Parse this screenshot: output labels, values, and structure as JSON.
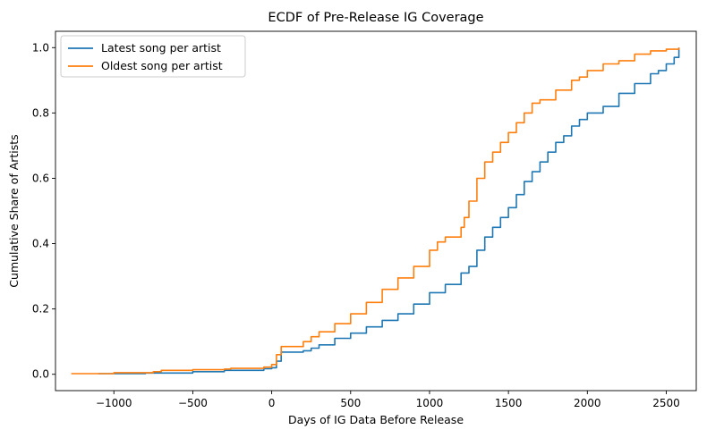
{
  "chart_data": {
    "type": "line",
    "title": "ECDF of Pre-Release IG Coverage",
    "xlabel": "Days of IG Data Before Release",
    "ylabel": "Cumulative Share of Artists",
    "xlim": [
      -1370,
      2690
    ],
    "ylim": [
      -0.05,
      1.05
    ],
    "xticks": [
      -1000,
      -500,
      0,
      500,
      1000,
      1500,
      2000,
      2500
    ],
    "xtick_labels": [
      "−1000",
      "−500",
      "0",
      "500",
      "1000",
      "1500",
      "2000",
      "2500"
    ],
    "yticks": [
      0.0,
      0.2,
      0.4,
      0.6,
      0.8,
      1.0
    ],
    "ytick_labels": [
      "0.0",
      "0.2",
      "0.4",
      "0.6",
      "0.8",
      "1.0"
    ],
    "grid": false,
    "legend_position": "top-left",
    "series": [
      {
        "name": "Latest song per artist",
        "color": "#1f77b4",
        "x": [
          -1100,
          -800,
          -500,
          -300,
          -50,
          0,
          30,
          60,
          200,
          250,
          300,
          400,
          500,
          600,
          700,
          800,
          900,
          1000,
          1100,
          1200,
          1250,
          1300,
          1350,
          1400,
          1450,
          1500,
          1550,
          1600,
          1650,
          1700,
          1750,
          1800,
          1850,
          1900,
          1950,
          2000,
          2100,
          2200,
          2300,
          2400,
          2450,
          2500,
          2550,
          2580
        ],
        "y": [
          0.002,
          0.004,
          0.008,
          0.012,
          0.017,
          0.02,
          0.04,
          0.068,
          0.072,
          0.08,
          0.09,
          0.11,
          0.126,
          0.145,
          0.165,
          0.185,
          0.215,
          0.25,
          0.275,
          0.31,
          0.33,
          0.38,
          0.42,
          0.45,
          0.48,
          0.51,
          0.55,
          0.59,
          0.62,
          0.65,
          0.68,
          0.71,
          0.73,
          0.76,
          0.78,
          0.8,
          0.82,
          0.86,
          0.89,
          0.92,
          0.93,
          0.95,
          0.97,
          1.0
        ]
      },
      {
        "name": "Oldest song per artist",
        "color": "#ff7f0e",
        "x": [
          -1270,
          -1000,
          -750,
          -700,
          -500,
          -300,
          -260,
          -50,
          0,
          30,
          60,
          200,
          250,
          300,
          400,
          500,
          600,
          700,
          800,
          900,
          1000,
          1050,
          1100,
          1200,
          1220,
          1250,
          1300,
          1350,
          1400,
          1450,
          1500,
          1550,
          1600,
          1650,
          1700,
          1800,
          1900,
          1950,
          2000,
          2100,
          2200,
          2300,
          2400,
          2500,
          2580
        ],
        "y": [
          0.002,
          0.005,
          0.008,
          0.012,
          0.014,
          0.016,
          0.018,
          0.022,
          0.03,
          0.06,
          0.085,
          0.1,
          0.115,
          0.13,
          0.155,
          0.185,
          0.22,
          0.26,
          0.295,
          0.33,
          0.38,
          0.405,
          0.42,
          0.45,
          0.48,
          0.53,
          0.6,
          0.65,
          0.68,
          0.71,
          0.74,
          0.77,
          0.8,
          0.83,
          0.84,
          0.87,
          0.9,
          0.91,
          0.93,
          0.95,
          0.96,
          0.98,
          0.99,
          0.995,
          1.0
        ]
      }
    ]
  }
}
